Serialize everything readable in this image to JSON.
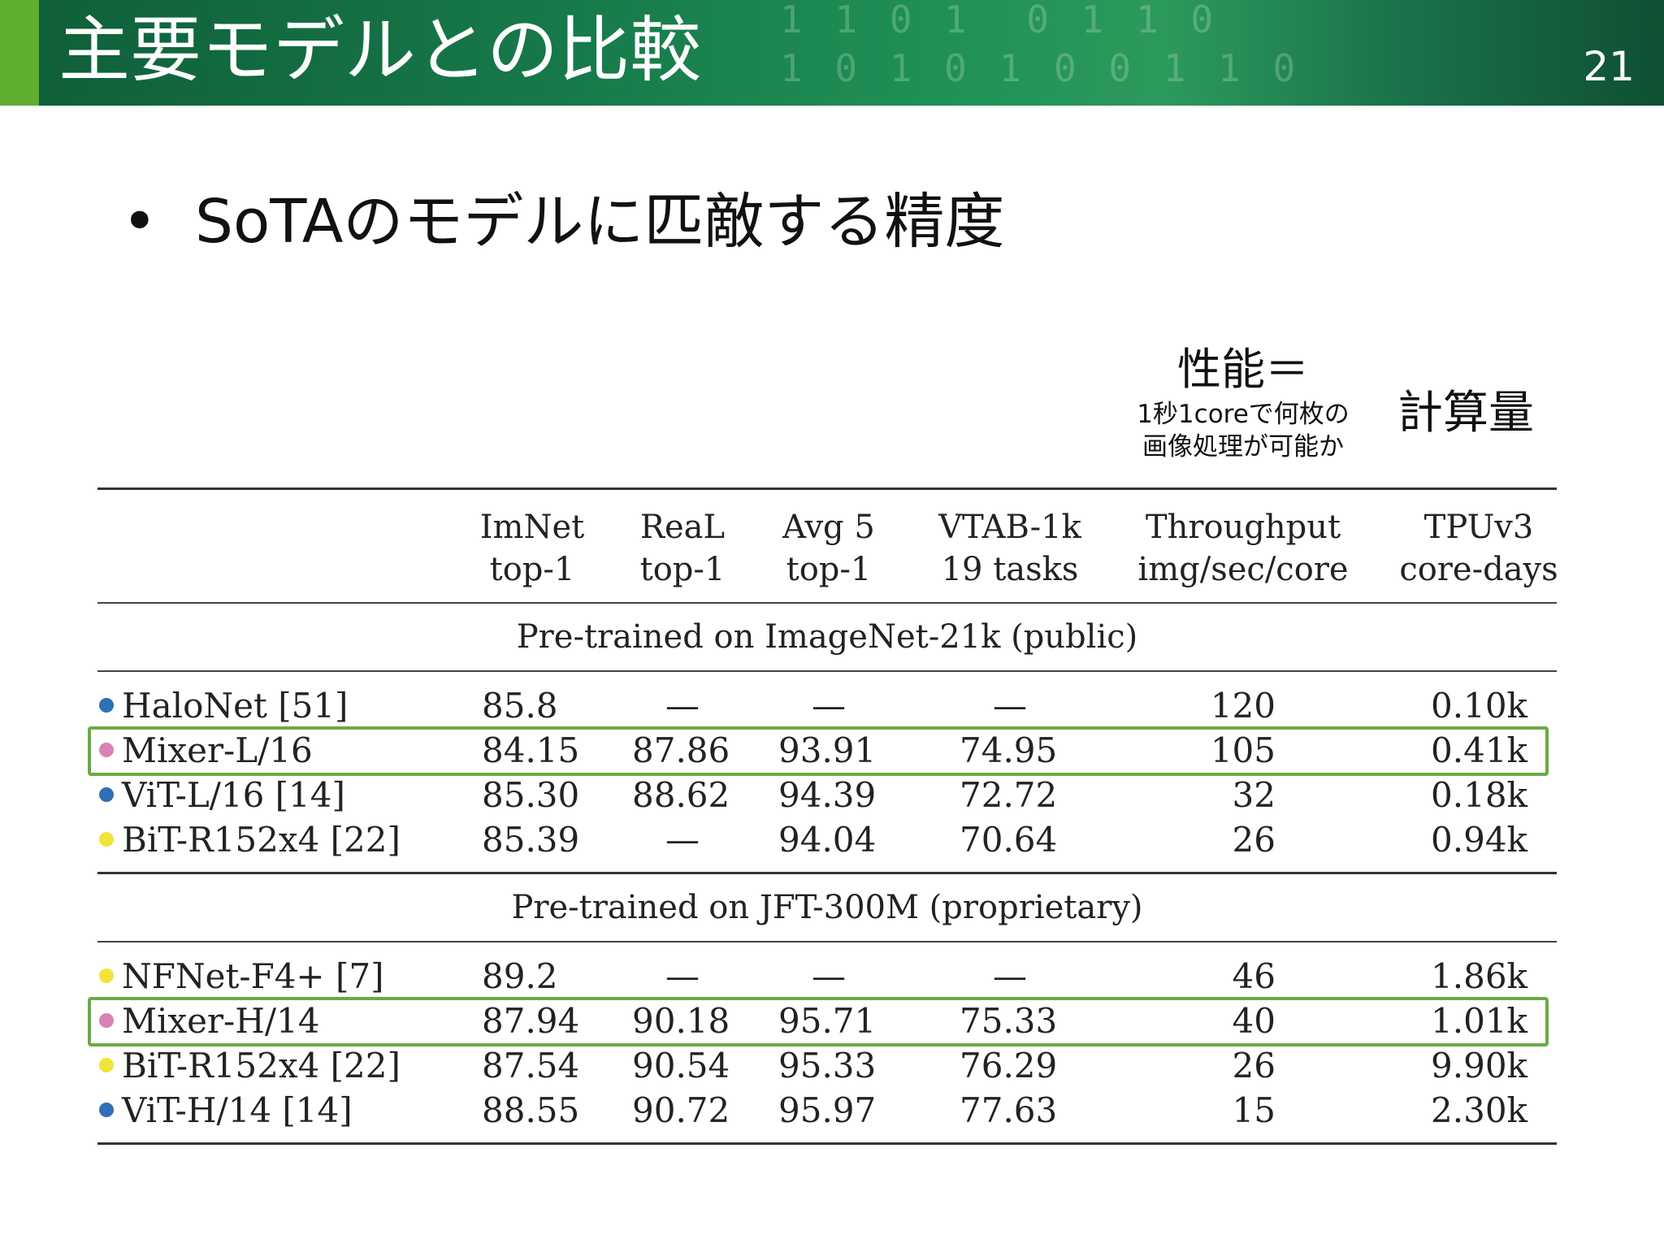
{
  "header": {
    "title": "主要モデルとの比較",
    "page_number": "21",
    "background_digits": "1 1 0 1  0 1 1 0\n1 0 1 0 1 0 0 1 1 0"
  },
  "bullet": {
    "marker": "•",
    "text": "SoTAのモデルに匹敵する精度"
  },
  "annotations": {
    "performance_title": "性能＝",
    "performance_line1": "1秒1coreで何枚の",
    "performance_line2": "画像処理が可能か",
    "compute": "計算量"
  },
  "table": {
    "columns": [
      {
        "line1": "ImNet",
        "line2": "top-1"
      },
      {
        "line1": "ReaL",
        "line2": "top-1"
      },
      {
        "line1": "Avg 5",
        "line2": "top-1"
      },
      {
        "line1": "VTAB-1k",
        "line2": "19 tasks"
      },
      {
        "line1": "Throughput",
        "line2": "img/sec/core"
      },
      {
        "line1": "TPUv3",
        "line2": "core-days"
      }
    ],
    "sections": [
      {
        "title": "Pre-trained on ImageNet-21k (public)",
        "rows": [
          {
            "dot": "#2f6fb5",
            "model": "HaloNet [51]",
            "values": [
              "85.8",
              "—",
              "—",
              "—",
              "120",
              "0.10k"
            ],
            "highlight": false
          },
          {
            "dot": "#d883b6",
            "model": "Mixer-L/16",
            "values": [
              "84.15",
              "87.86",
              "93.91",
              "74.95",
              "105",
              "0.41k"
            ],
            "highlight": true
          },
          {
            "dot": "#2f6fb5",
            "model": "ViT-L/16 [14]",
            "values": [
              "85.30",
              "88.62",
              "94.39",
              "72.72",
              "32",
              "0.18k"
            ],
            "highlight": false
          },
          {
            "dot": "#f2e33a",
            "model": "BiT-R152x4 [22]",
            "values": [
              "85.39",
              "—",
              "94.04",
              "70.64",
              "26",
              "0.94k"
            ],
            "highlight": false
          }
        ]
      },
      {
        "title": "Pre-trained on JFT-300M (proprietary)",
        "rows": [
          {
            "dot": "#f2e33a",
            "model": "NFNet-F4+ [7]",
            "values": [
              "89.2",
              "—",
              "—",
              "—",
              "46",
              "1.86k"
            ],
            "highlight": false
          },
          {
            "dot": "#d883b6",
            "model": "Mixer-H/14",
            "values": [
              "87.94",
              "90.18",
              "95.71",
              "75.33",
              "40",
              "1.01k"
            ],
            "highlight": true
          },
          {
            "dot": "#f2e33a",
            "model": "BiT-R152x4 [22]",
            "values": [
              "87.54",
              "90.54",
              "95.33",
              "76.29",
              "26",
              "9.90k"
            ],
            "highlight": false
          },
          {
            "dot": "#2f6fb5",
            "model": "ViT-H/14 [14]",
            "values": [
              "88.55",
              "90.72",
              "95.97",
              "77.63",
              "15",
              "2.30k"
            ],
            "highlight": false
          }
        ]
      }
    ],
    "highlight_color": "#6aab43"
  }
}
